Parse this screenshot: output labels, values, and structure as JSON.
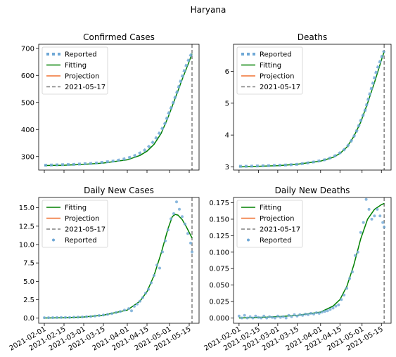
{
  "suptitle": "Haryana",
  "colors": {
    "reported": "#6fa8d6",
    "fitting": "#008000",
    "projection": "#f07030",
    "vline": "#808080",
    "axis": "#000000"
  },
  "x_tick_labels": [
    "2021-02-01",
    "2021-02-15",
    "2021-03-01",
    "2021-03-15",
    "2021-04-01",
    "2021-04-15",
    "2021-05-01",
    "2021-05-15"
  ],
  "vline_date": "2021-05-17",
  "chart_data": [
    {
      "type": "line",
      "title": "Confirmed Cases",
      "legend": [
        "Reported",
        "Fitting",
        "Projection",
        "2021-05-17"
      ],
      "legend_position": "upper-left",
      "show_x_tick_labels": false,
      "x_range": [
        "2021-01-28",
        "2021-05-22"
      ],
      "ylim": [
        250,
        715
      ],
      "yticks": [
        300,
        400,
        500,
        600,
        700
      ],
      "ytick_labels": [
        "300",
        "400",
        "500",
        "600",
        "700"
      ],
      "reported_style": "square-dashed",
      "reported": [
        [
          "2021-02-01",
          268
        ],
        [
          "2021-02-08",
          269
        ],
        [
          "2021-02-15",
          270
        ],
        [
          "2021-02-22",
          271
        ],
        [
          "2021-03-01",
          273
        ],
        [
          "2021-03-08",
          275
        ],
        [
          "2021-03-15",
          279
        ],
        [
          "2021-03-22",
          283
        ],
        [
          "2021-03-29",
          290
        ],
        [
          "2021-04-05",
          300
        ],
        [
          "2021-04-09",
          310
        ],
        [
          "2021-04-13",
          322
        ],
        [
          "2021-04-17",
          340
        ],
        [
          "2021-04-20",
          358
        ],
        [
          "2021-04-23",
          380
        ],
        [
          "2021-04-26",
          405
        ],
        [
          "2021-04-28",
          425
        ],
        [
          "2021-04-30",
          455
        ],
        [
          "2021-05-03",
          490
        ],
        [
          "2021-05-05",
          520
        ],
        [
          "2021-05-07",
          548
        ],
        [
          "2021-05-09",
          580
        ],
        [
          "2021-05-11",
          610
        ],
        [
          "2021-05-13",
          638
        ],
        [
          "2021-05-15",
          662
        ],
        [
          "2021-05-17",
          685
        ]
      ],
      "fitting": [
        [
          "2021-02-01",
          267
        ],
        [
          "2021-02-15",
          268
        ],
        [
          "2021-03-01",
          271
        ],
        [
          "2021-03-15",
          276
        ],
        [
          "2021-04-01",
          288
        ],
        [
          "2021-04-10",
          304
        ],
        [
          "2021-04-15",
          320
        ],
        [
          "2021-04-20",
          345
        ],
        [
          "2021-04-25",
          385
        ],
        [
          "2021-04-30",
          445
        ],
        [
          "2021-05-05",
          515
        ],
        [
          "2021-05-10",
          585
        ],
        [
          "2021-05-15",
          652
        ],
        [
          "2021-05-17",
          680
        ]
      ]
    },
    {
      "type": "line",
      "title": "Deaths",
      "legend": [
        "Reported",
        "Fitting",
        "Projection",
        "2021-05-17"
      ],
      "legend_position": "upper-left",
      "show_x_tick_labels": false,
      "x_range": [
        "2021-01-28",
        "2021-05-22"
      ],
      "ylim": [
        2.9,
        6.85
      ],
      "yticks": [
        3,
        4,
        5,
        6
      ],
      "ytick_labels": [
        "3",
        "4",
        "5",
        "6"
      ],
      "reported_style": "square-dashed",
      "reported": [
        [
          "2021-02-01",
          3.02
        ],
        [
          "2021-02-08",
          3.02
        ],
        [
          "2021-02-15",
          3.03
        ],
        [
          "2021-02-22",
          3.04
        ],
        [
          "2021-03-01",
          3.05
        ],
        [
          "2021-03-08",
          3.06
        ],
        [
          "2021-03-15",
          3.08
        ],
        [
          "2021-03-22",
          3.12
        ],
        [
          "2021-03-29",
          3.17
        ],
        [
          "2021-04-05",
          3.23
        ],
        [
          "2021-04-09",
          3.3
        ],
        [
          "2021-04-13",
          3.38
        ],
        [
          "2021-04-17",
          3.5
        ],
        [
          "2021-04-20",
          3.62
        ],
        [
          "2021-04-23",
          3.8
        ],
        [
          "2021-04-26",
          4.02
        ],
        [
          "2021-04-28",
          4.22
        ],
        [
          "2021-04-30",
          4.45
        ],
        [
          "2021-05-03",
          4.75
        ],
        [
          "2021-05-05",
          5.05
        ],
        [
          "2021-05-07",
          5.35
        ],
        [
          "2021-05-09",
          5.65
        ],
        [
          "2021-05-11",
          5.95
        ],
        [
          "2021-05-13",
          6.2
        ],
        [
          "2021-05-15",
          6.42
        ],
        [
          "2021-05-17",
          6.65
        ]
      ],
      "fitting": [
        [
          "2021-02-01",
          3.0
        ],
        [
          "2021-02-15",
          3.02
        ],
        [
          "2021-03-01",
          3.04
        ],
        [
          "2021-03-15",
          3.08
        ],
        [
          "2021-04-01",
          3.18
        ],
        [
          "2021-04-10",
          3.3
        ],
        [
          "2021-04-15",
          3.42
        ],
        [
          "2021-04-20",
          3.62
        ],
        [
          "2021-04-25",
          3.95
        ],
        [
          "2021-04-30",
          4.4
        ],
        [
          "2021-05-05",
          5.0
        ],
        [
          "2021-05-10",
          5.65
        ],
        [
          "2021-05-15",
          6.35
        ],
        [
          "2021-05-17",
          6.62
        ]
      ]
    },
    {
      "type": "scatter",
      "title": "Daily New Cases",
      "legend": [
        "Fitting",
        "Projection",
        "2021-05-17",
        "Reported"
      ],
      "legend_position": "upper-left",
      "show_x_tick_labels": true,
      "x_range": [
        "2021-01-28",
        "2021-05-22"
      ],
      "ylim": [
        -0.7,
        16.4
      ],
      "yticks": [
        0,
        2.5,
        5,
        7.5,
        10,
        12.5,
        15
      ],
      "ytick_labels": [
        "0.0",
        "2.5",
        "5.0",
        "7.5",
        "10.0",
        "12.5",
        "15.0"
      ],
      "reported_style": "dots",
      "reported": [
        [
          "2021-02-01",
          0.05
        ],
        [
          "2021-02-04",
          0.05
        ],
        [
          "2021-02-07",
          0.06
        ],
        [
          "2021-02-10",
          0.07
        ],
        [
          "2021-02-13",
          0.08
        ],
        [
          "2021-02-16",
          0.08
        ],
        [
          "2021-02-19",
          0.09
        ],
        [
          "2021-02-22",
          0.12
        ],
        [
          "2021-02-25",
          0.14
        ],
        [
          "2021-02-28",
          0.16
        ],
        [
          "2021-03-03",
          0.2
        ],
        [
          "2021-03-06",
          0.22
        ],
        [
          "2021-03-09",
          0.28
        ],
        [
          "2021-03-12",
          0.35
        ],
        [
          "2021-03-15",
          0.42
        ],
        [
          "2021-03-18",
          0.5
        ],
        [
          "2021-03-21",
          0.62
        ],
        [
          "2021-03-24",
          0.75
        ],
        [
          "2021-03-27",
          0.9
        ],
        [
          "2021-03-30",
          1.1
        ],
        [
          "2021-04-02",
          1.3
        ],
        [
          "2021-04-04",
          1.0
        ],
        [
          "2021-04-06",
          1.6
        ],
        [
          "2021-04-08",
          1.9
        ],
        [
          "2021-04-10",
          2.3
        ],
        [
          "2021-04-12",
          2.8
        ],
        [
          "2021-04-14",
          3.4
        ],
        [
          "2021-04-16",
          3.9
        ],
        [
          "2021-04-18",
          4.8
        ],
        [
          "2021-04-20",
          5.8
        ],
        [
          "2021-04-22",
          7.2
        ],
        [
          "2021-04-24",
          6.8
        ],
        [
          "2021-04-26",
          9.0
        ],
        [
          "2021-04-28",
          10.5
        ],
        [
          "2021-04-30",
          12.0
        ],
        [
          "2021-05-02",
          13.5
        ],
        [
          "2021-05-04",
          14.2
        ],
        [
          "2021-05-06",
          15.8
        ],
        [
          "2021-05-08",
          14.8
        ],
        [
          "2021-05-10",
          13.8
        ],
        [
          "2021-05-12",
          12.8
        ],
        [
          "2021-05-14",
          11.5
        ],
        [
          "2021-05-16",
          10.2
        ],
        [
          "2021-05-17",
          9.0
        ]
      ],
      "fitting": [
        [
          "2021-02-01",
          0.02
        ],
        [
          "2021-02-15",
          0.05
        ],
        [
          "2021-03-01",
          0.15
        ],
        [
          "2021-03-15",
          0.4
        ],
        [
          "2021-04-01",
          1.1
        ],
        [
          "2021-04-10",
          2.3
        ],
        [
          "2021-04-15",
          3.6
        ],
        [
          "2021-04-20",
          5.8
        ],
        [
          "2021-04-25",
          8.8
        ],
        [
          "2021-04-30",
          12.2
        ],
        [
          "2021-05-03",
          13.8
        ],
        [
          "2021-05-05",
          14.1
        ],
        [
          "2021-05-07",
          14.0
        ],
        [
          "2021-05-10",
          13.4
        ],
        [
          "2021-05-13",
          12.4
        ],
        [
          "2021-05-17",
          10.9
        ]
      ]
    },
    {
      "type": "scatter",
      "title": "Daily New Deaths",
      "legend": [
        "Fitting",
        "Projection",
        "2021-05-17",
        "Reported"
      ],
      "legend_position": "upper-left",
      "show_x_tick_labels": true,
      "x_range": [
        "2021-01-28",
        "2021-05-22"
      ],
      "ylim": [
        -0.008,
        0.183
      ],
      "yticks": [
        0,
        0.025,
        0.05,
        0.075,
        0.1,
        0.125,
        0.15,
        0.175
      ],
      "ytick_labels": [
        "0.000",
        "0.025",
        "0.050",
        "0.075",
        "0.100",
        "0.125",
        "0.150",
        "0.175"
      ],
      "reported_style": "dots",
      "reported": [
        [
          "2021-02-01",
          0.003
        ],
        [
          "2021-02-03",
          0.0
        ],
        [
          "2021-02-05",
          0.004
        ],
        [
          "2021-02-07",
          0.0
        ],
        [
          "2021-02-09",
          0.002
        ],
        [
          "2021-02-11",
          0.0
        ],
        [
          "2021-02-13",
          0.003
        ],
        [
          "2021-02-15",
          0.001
        ],
        [
          "2021-02-17",
          0.0
        ],
        [
          "2021-02-19",
          0.003
        ],
        [
          "2021-02-21",
          0.0
        ],
        [
          "2021-02-23",
          0.002
        ],
        [
          "2021-02-25",
          0.001
        ],
        [
          "2021-02-27",
          0.0
        ],
        [
          "2021-03-01",
          0.003
        ],
        [
          "2021-03-03",
          0.001
        ],
        [
          "2021-03-05",
          0.002
        ],
        [
          "2021-03-07",
          0.0
        ],
        [
          "2021-03-09",
          0.004
        ],
        [
          "2021-03-11",
          0.002
        ],
        [
          "2021-03-13",
          0.005
        ],
        [
          "2021-03-15",
          0.003
        ],
        [
          "2021-03-17",
          0.005
        ],
        [
          "2021-03-19",
          0.004
        ],
        [
          "2021-03-21",
          0.006
        ],
        [
          "2021-03-23",
          0.005
        ],
        [
          "2021-03-25",
          0.007
        ],
        [
          "2021-03-27",
          0.006
        ],
        [
          "2021-03-29",
          0.008
        ],
        [
          "2021-03-31",
          0.007
        ],
        [
          "2021-04-02",
          0.009
        ],
        [
          "2021-04-04",
          0.01
        ],
        [
          "2021-04-06",
          0.011
        ],
        [
          "2021-04-08",
          0.013
        ],
        [
          "2021-04-10",
          0.015
        ],
        [
          "2021-04-12",
          0.018
        ],
        [
          "2021-04-14",
          0.02
        ],
        [
          "2021-04-16",
          0.028
        ],
        [
          "2021-04-18",
          0.035
        ],
        [
          "2021-04-20",
          0.045
        ],
        [
          "2021-04-22",
          0.06
        ],
        [
          "2021-04-24",
          0.07
        ],
        [
          "2021-04-26",
          0.095
        ],
        [
          "2021-04-28",
          0.1
        ],
        [
          "2021-04-30",
          0.13
        ],
        [
          "2021-05-02",
          0.145
        ],
        [
          "2021-05-04",
          0.18
        ],
        [
          "2021-05-06",
          0.165
        ],
        [
          "2021-05-08",
          0.15
        ],
        [
          "2021-05-10",
          0.155
        ],
        [
          "2021-05-12",
          0.165
        ],
        [
          "2021-05-14",
          0.155
        ],
        [
          "2021-05-16",
          0.145
        ],
        [
          "2021-05-17",
          0.138
        ]
      ],
      "fitting": [
        [
          "2021-02-01",
          0.0
        ],
        [
          "2021-02-15",
          0.001
        ],
        [
          "2021-03-01",
          0.002
        ],
        [
          "2021-03-15",
          0.004
        ],
        [
          "2021-04-01",
          0.009
        ],
        [
          "2021-04-10",
          0.018
        ],
        [
          "2021-04-15",
          0.028
        ],
        [
          "2021-04-20",
          0.048
        ],
        [
          "2021-04-25",
          0.08
        ],
        [
          "2021-04-30",
          0.12
        ],
        [
          "2021-05-05",
          0.15
        ],
        [
          "2021-05-10",
          0.165
        ],
        [
          "2021-05-15",
          0.172
        ],
        [
          "2021-05-17",
          0.174
        ]
      ]
    }
  ]
}
